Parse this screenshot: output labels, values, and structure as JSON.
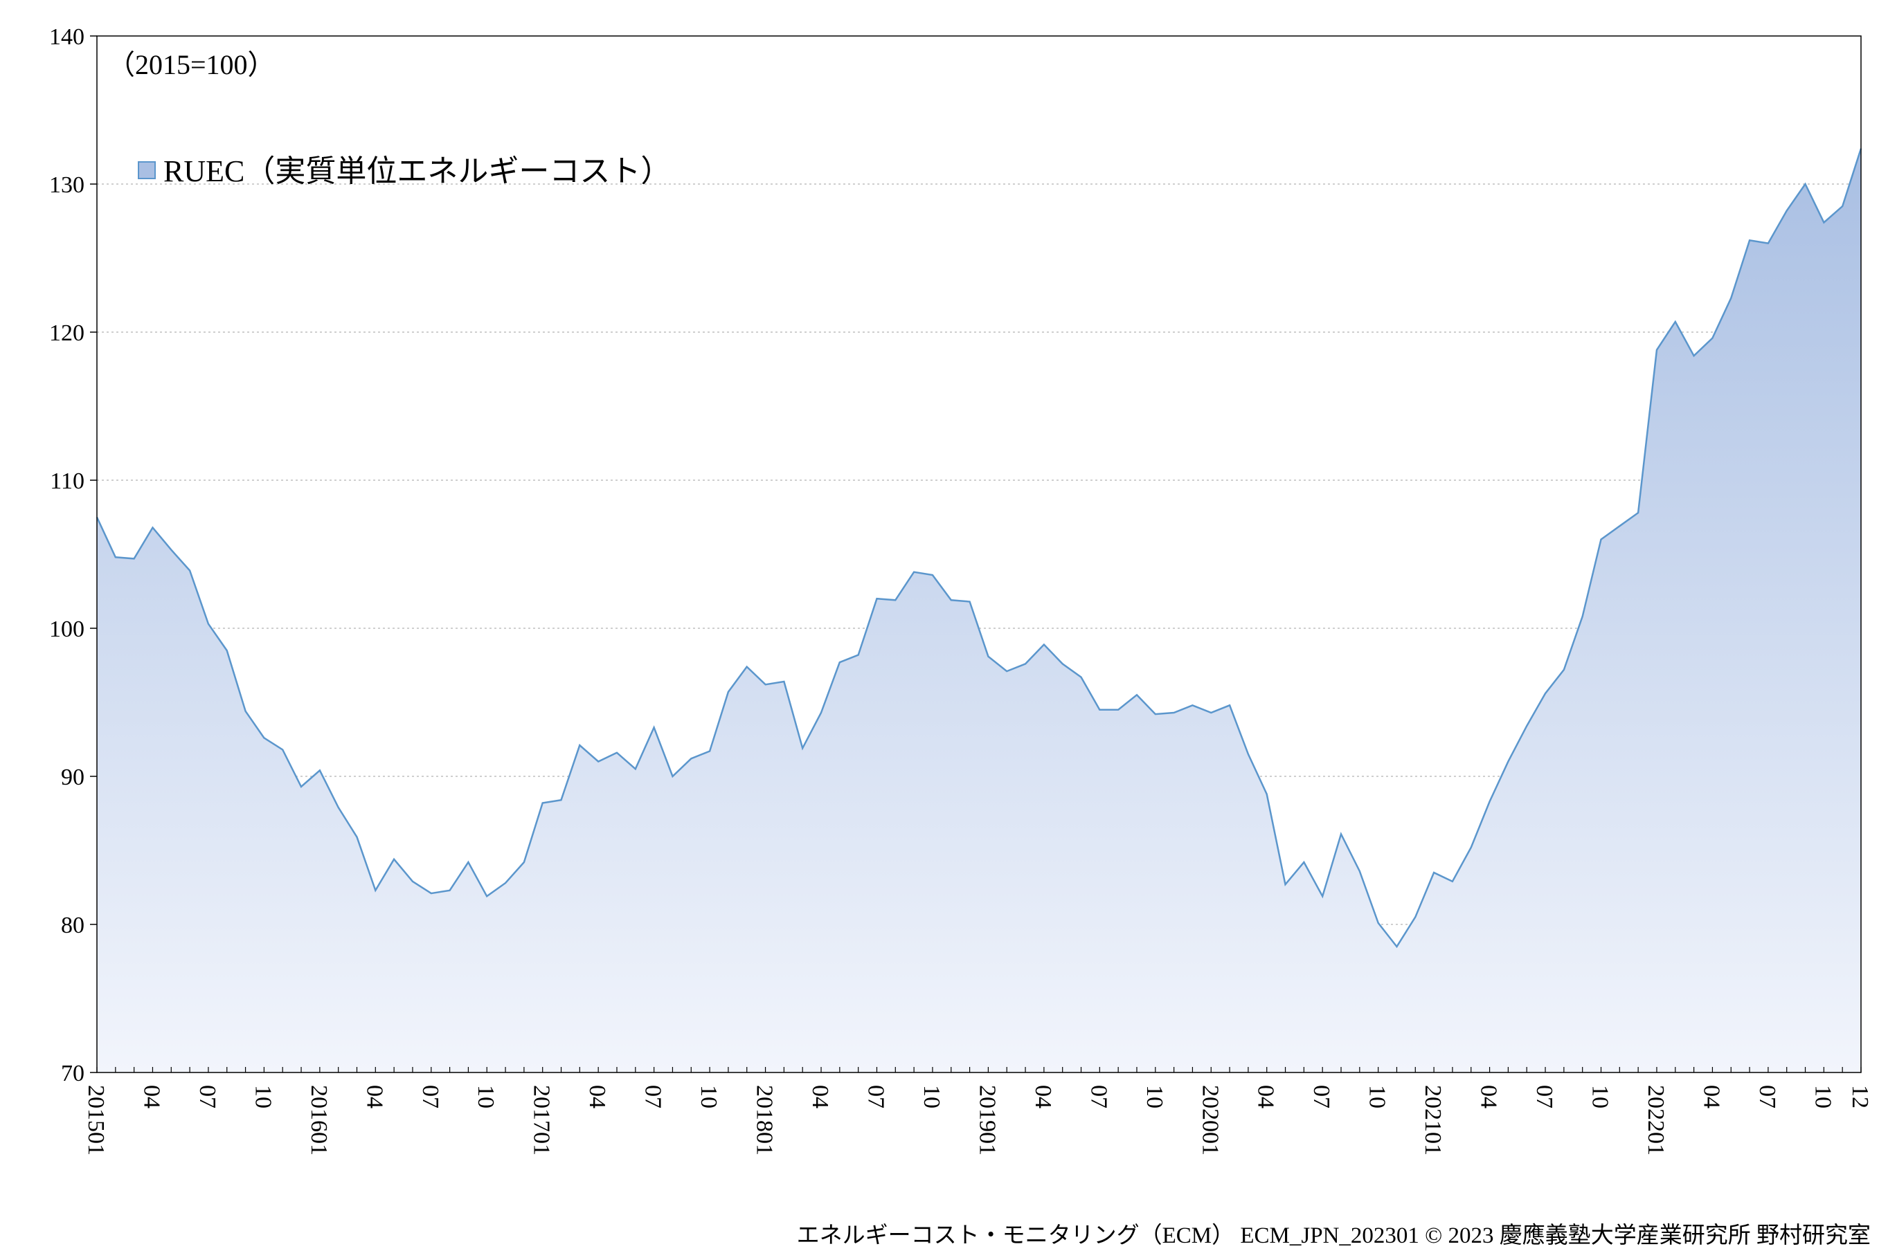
{
  "chart_data": {
    "type": "area",
    "unit_note": "（2015=100）",
    "ylim": [
      70,
      140
    ],
    "y_ticks": [
      70,
      80,
      90,
      100,
      110,
      120,
      130,
      140
    ],
    "x_tick_labels": [
      "201501",
      "04",
      "07",
      "10",
      "201601",
      "04",
      "07",
      "10",
      "201701",
      "04",
      "07",
      "10",
      "201801",
      "04",
      "07",
      "10",
      "201901",
      "04",
      "07",
      "10",
      "202001",
      "04",
      "07",
      "10",
      "202101",
      "04",
      "07",
      "10",
      "202201",
      "04",
      "07",
      "10",
      "12"
    ],
    "grid": "horizontal-dotted",
    "legend_position": "top-left",
    "series": [
      {
        "name": "RUEC（実質単位エネルギーコスト）",
        "values": [
          107.5,
          104.8,
          104.7,
          106.8,
          105.3,
          103.9,
          100.3,
          98.5,
          94.4,
          92.6,
          91.8,
          89.3,
          90.4,
          87.9,
          85.9,
          82.3,
          84.4,
          82.9,
          82.1,
          82.3,
          84.2,
          81.9,
          82.8,
          84.2,
          88.2,
          88.4,
          92.1,
          91.0,
          91.6,
          90.5,
          93.3,
          90.0,
          91.2,
          91.7,
          95.7,
          97.4,
          96.2,
          96.4,
          91.9,
          94.3,
          97.7,
          98.2,
          102.0,
          101.9,
          103.8,
          103.6,
          101.9,
          101.8,
          98.1,
          97.1,
          97.6,
          98.9,
          97.6,
          96.7,
          94.5,
          94.5,
          95.5,
          94.2,
          94.3,
          94.8,
          94.3,
          94.8,
          91.5,
          88.8,
          82.7,
          84.2,
          81.9,
          86.1,
          83.6,
          80.1,
          78.5,
          80.5,
          83.5,
          82.9,
          85.2,
          88.3,
          91.0,
          93.4,
          95.6,
          97.2,
          100.8,
          106.0,
          106.9,
          107.8,
          118.8,
          120.7,
          118.4,
          119.6,
          122.3,
          126.2,
          126.0,
          128.2,
          130.0,
          127.4,
          128.5,
          132.4
        ]
      }
    ],
    "credit": "エネルギーコスト・モニタリング（ECM） ECM_JPN_202301 © 2023 慶應義塾大学産業研究所 野村研究室"
  },
  "colors": {
    "line": "#5b96cc",
    "fill_top": "#a9bfe3",
    "fill_bottom": "#f2f5fc",
    "grid": "#bfbfbf",
    "axis": "#000000"
  }
}
